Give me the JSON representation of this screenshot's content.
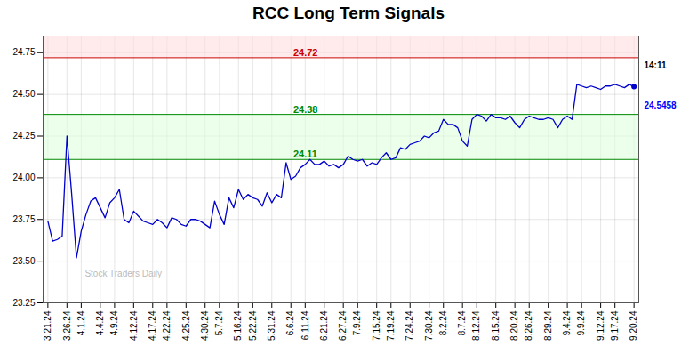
{
  "chart_data": {
    "type": "line",
    "title": "RCC Long Term Signals",
    "categories": [
      "3.21.24",
      null,
      null,
      null,
      "3.26.24",
      null,
      null,
      "4.1.24",
      null,
      null,
      null,
      "4.4.24",
      null,
      null,
      "4.9.24",
      null,
      null,
      null,
      "4.12.24",
      null,
      null,
      null,
      "4.17.24",
      null,
      null,
      "4.22.24",
      null,
      null,
      null,
      "4.25.24",
      null,
      null,
      null,
      "4.30.24",
      null,
      null,
      "5.7.24",
      null,
      null,
      null,
      "5.16.24",
      null,
      null,
      "5.22.24",
      null,
      null,
      null,
      "5.31.24",
      null,
      null,
      null,
      "6.6.24",
      null,
      null,
      "6.11.24",
      null,
      null,
      null,
      "6.21.24",
      null,
      null,
      null,
      "6.27.24",
      null,
      null,
      "7.9.24",
      null,
      null,
      null,
      "7.15.24",
      null,
      null,
      "7.19.24",
      null,
      null,
      null,
      "7.24.24",
      null,
      null,
      null,
      "7.30.24",
      null,
      null,
      "8.2.24",
      null,
      null,
      null,
      "8.7.24",
      null,
      null,
      "8.12.24",
      null,
      null,
      null,
      "8.15.24",
      null,
      null,
      null,
      "8.20.24",
      null,
      null,
      "8.26.24",
      null,
      null,
      null,
      "8.29.24",
      null,
      null,
      null,
      "9.4.24",
      null,
      null,
      "9.9.24",
      null,
      null,
      null,
      "9.12.24",
      null,
      null,
      "9.17.24",
      null,
      null,
      null,
      "9.20.24"
    ],
    "values": [
      23.74,
      23.62,
      23.63,
      23.65,
      24.25,
      23.9,
      23.52,
      23.68,
      23.78,
      23.86,
      23.88,
      23.82,
      23.76,
      23.85,
      23.88,
      23.93,
      23.75,
      23.73,
      23.8,
      23.77,
      23.74,
      23.73,
      23.72,
      23.75,
      23.73,
      23.7,
      23.76,
      23.75,
      23.72,
      23.71,
      23.75,
      23.75,
      23.74,
      23.72,
      23.7,
      23.86,
      23.78,
      23.72,
      23.88,
      23.82,
      23.93,
      23.87,
      23.9,
      23.88,
      23.87,
      23.83,
      23.91,
      23.85,
      23.9,
      23.88,
      24.09,
      23.99,
      24.01,
      24.06,
      24.08,
      24.11,
      24.08,
      24.08,
      24.1,
      24.07,
      24.08,
      24.06,
      24.08,
      24.13,
      24.11,
      24.1,
      24.11,
      24.07,
      24.09,
      24.08,
      24.12,
      24.15,
      24.11,
      24.12,
      24.18,
      24.17,
      24.2,
      24.21,
      24.22,
      24.25,
      24.24,
      24.27,
      24.28,
      24.35,
      24.32,
      24.32,
      24.3,
      24.22,
      24.19,
      24.35,
      24.38,
      24.37,
      24.34,
      24.38,
      24.36,
      24.36,
      24.35,
      24.37,
      24.33,
      24.3,
      24.35,
      24.37,
      24.36,
      24.35,
      24.35,
      24.36,
      24.35,
      24.3,
      24.35,
      24.37,
      24.35,
      24.56,
      24.55,
      24.54,
      24.55,
      24.54,
      24.53,
      24.55,
      24.55,
      24.56,
      24.55,
      24.54,
      24.56,
      24.5458
    ],
    "color": "#0000cc",
    "ylim": [
      23.25,
      24.85
    ],
    "yticks": [
      23.25,
      {
        "value": 23.5,
        "label": "23.50"
      },
      23.75,
      {
        "value": 24.0,
        "label": "24.00"
      },
      24.25,
      {
        "value": 24.5,
        "label": "24.50"
      },
      24.75
    ],
    "grid": true,
    "bands": [
      {
        "from": 24.72,
        "to": 24.85,
        "color": "#ffdddd"
      },
      {
        "from": 24.11,
        "to": 24.38,
        "color": "#ddffdd"
      }
    ],
    "reference_lines": [
      {
        "value": 24.72,
        "label": "24.72",
        "color": "#cc0000"
      },
      {
        "value": 24.38,
        "label": "24.38",
        "color": "#008800"
      },
      {
        "value": 24.11,
        "label": "24.11",
        "color": "#008800"
      }
    ],
    "annotations": [
      {
        "text": "14:11",
        "color": "#000000"
      },
      {
        "text": "24.5458",
        "color": "#0000ff"
      },
      {
        "text": "Stock Traders Daily",
        "color": "#bbbbbb"
      }
    ]
  }
}
